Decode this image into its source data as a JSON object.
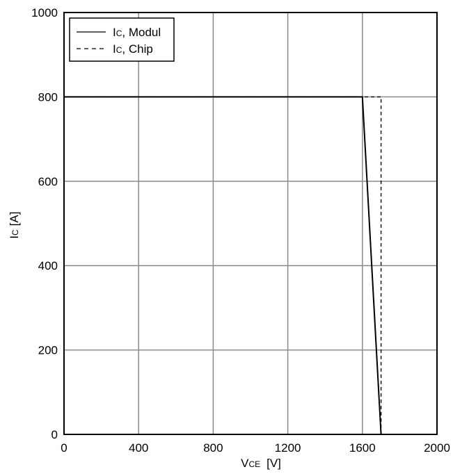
{
  "chart_data": {
    "type": "line",
    "xlabel": {
      "main": "V",
      "sub": "CE",
      "unit": "[V]"
    },
    "ylabel": {
      "main": "I",
      "sub": "C",
      "unit": "[A]"
    },
    "xlim": [
      0,
      2000
    ],
    "ylim": [
      0,
      1000
    ],
    "xticks": [
      0,
      400,
      800,
      1200,
      1600,
      2000
    ],
    "yticks": [
      0,
      200,
      400,
      600,
      800,
      1000
    ],
    "xtick_labels": [
      "0",
      "400",
      "800",
      "1200",
      "1600",
      "2000"
    ],
    "ytick_labels": [
      "0",
      "200",
      "400",
      "600",
      "800",
      "1000"
    ],
    "grid": true,
    "legend_position": "top-left",
    "series": [
      {
        "name": {
          "main": "I",
          "sub": "C",
          "rest": ", Modul"
        },
        "style": "solid",
        "color": "#000000",
        "x": [
          0,
          1600,
          1600,
          1700
        ],
        "y": [
          800,
          800,
          800,
          0
        ]
      },
      {
        "name": {
          "main": "I",
          "sub": "C",
          "rest": ", Chip"
        },
        "style": "dashed",
        "color": "#000000",
        "x": [
          0,
          1700,
          1700
        ],
        "y": [
          800,
          800,
          0
        ]
      }
    ]
  }
}
